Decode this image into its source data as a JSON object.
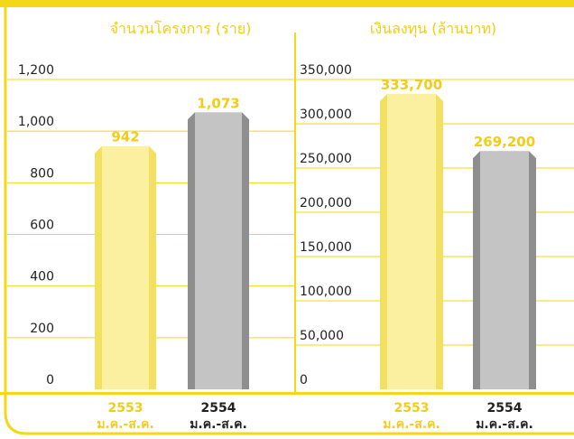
{
  "colors": {
    "banner": "#f2d816",
    "frame": "#f2d816",
    "grid": "#f2d816",
    "bar_2553": "#fbf0a0",
    "bar_2553_side": "#f4e060",
    "bar_2554": "#c4c4c4",
    "bar_2554_side": "#8e8e8e",
    "value_2553": "#f2cc18",
    "value_2554": "#f2cc18",
    "chart_title": "#f2cc18",
    "axis_text": "#222222",
    "xlabel_2553": "#f2cc18",
    "xlabel_2554": "#222222"
  },
  "chart_data": [
    {
      "type": "bar",
      "title": "จำนวนโครงการ (ราย)",
      "categories": [
        {
          "year": "2553",
          "period": "ม.ค.-ส.ค."
        },
        {
          "year": "2554",
          "period": "ม.ค.-ส.ค."
        }
      ],
      "values": [
        942,
        1073
      ],
      "value_labels": [
        "942",
        "1,073"
      ],
      "ylim": [
        0,
        1200
      ],
      "yticks": [
        0,
        200,
        400,
        600,
        800,
        1000,
        1200
      ],
      "ytick_labels": [
        "0",
        "200",
        "400",
        "600",
        "800",
        "1,000",
        "1,200"
      ],
      "grid": true
    },
    {
      "type": "bar",
      "title": "เงินลงทุน (ล้านบาท)",
      "categories": [
        {
          "year": "2553",
          "period": "ม.ค.-ส.ค."
        },
        {
          "year": "2554",
          "period": "ม.ค.-ส.ค."
        }
      ],
      "values": [
        333700,
        269200
      ],
      "value_labels": [
        "333,700",
        "269,200"
      ],
      "ylim": [
        0,
        350000
      ],
      "yticks": [
        0,
        50000,
        100000,
        150000,
        200000,
        250000,
        300000,
        350000
      ],
      "ytick_labels": [
        "0",
        "50,000",
        "100,000",
        "150,000",
        "200,000",
        "250,000",
        "300,000",
        "350,000"
      ],
      "grid": true
    }
  ]
}
